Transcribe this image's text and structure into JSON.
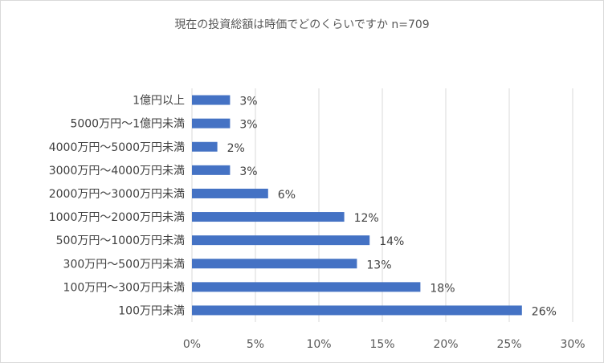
{
  "chart_data": {
    "type": "bar",
    "orientation": "horizontal",
    "title": "現在の投資総額は時価でどのくらいですか n=709",
    "categories": [
      "1億円以上",
      "5000万円～1億円未満",
      "4000万円～5000万円未満",
      "3000万円～4000万円未満",
      "2000万円～3000万円未満",
      "1000万円～2000万円未満",
      "500万円～1000万円未満",
      "300万円～500万円未満",
      "100万円～300万円未満",
      "100万円未満"
    ],
    "values": [
      3,
      3,
      2,
      3,
      6,
      12,
      14,
      13,
      18,
      26
    ],
    "data_labels": [
      "3%",
      "3%",
      "2%",
      "3%",
      "6%",
      "12%",
      "14%",
      "13%",
      "18%",
      "26%"
    ],
    "xticks": [
      "0%",
      "5%",
      "10%",
      "15%",
      "20%",
      "25%",
      "30%"
    ],
    "xlim": [
      0,
      30
    ],
    "grid": true,
    "bar_color": "#4472c4",
    "grid_color": "#d9d9d9"
  }
}
